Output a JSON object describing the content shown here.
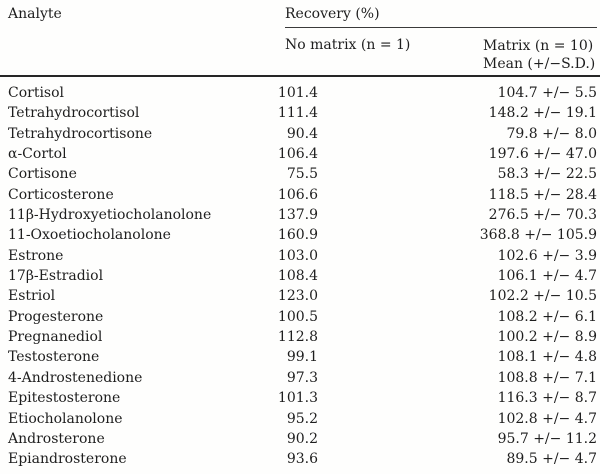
{
  "page": {
    "background": "#fefefd",
    "text_color": "#1e1e1e",
    "thick_rule_color": "#262626",
    "thin_rule_color": "#3a3a3a"
  },
  "table": {
    "analyte_header": "Analyte",
    "group_header": "Recovery (%)",
    "no_matrix_header": "No matrix (n = 1)",
    "matrix_header_line1": "Matrix (n = 10)",
    "matrix_header_line2": "Mean (+/−S.D.)",
    "rows": [
      {
        "analyte": "Cortisol",
        "no_matrix": "101.4",
        "matrix": "104.7 +/− 5.5"
      },
      {
        "analyte": "Tetrahydrocortisol",
        "no_matrix": "111.4",
        "matrix": "148.2 +/− 19.1"
      },
      {
        "analyte": "Tetrahydrocortisone",
        "no_matrix": "90.4",
        "matrix": "79.8 +/− 8.0"
      },
      {
        "analyte": "α-Cortol",
        "no_matrix": "106.4",
        "matrix": "197.6 +/− 47.0"
      },
      {
        "analyte": "Cortisone",
        "no_matrix": "75.5",
        "matrix": "58.3 +/− 22.5"
      },
      {
        "analyte": "Corticosterone",
        "no_matrix": "106.6",
        "matrix": "118.5 +/− 28.4"
      },
      {
        "analyte": "11β-Hydroxyetiocholanolone",
        "no_matrix": "137.9",
        "matrix": "276.5 +/− 70.3"
      },
      {
        "analyte": "11-Oxoetiocholanolone",
        "no_matrix": "160.9",
        "matrix": "368.8 +/− 105.9"
      },
      {
        "analyte": "Estrone",
        "no_matrix": "103.0",
        "matrix": "102.6 +/− 3.9"
      },
      {
        "analyte": "17β-Estradiol",
        "no_matrix": "108.4",
        "matrix": "106.1 +/− 4.7"
      },
      {
        "analyte": "Estriol",
        "no_matrix": "123.0",
        "matrix": "102.2 +/− 10.5"
      },
      {
        "analyte": "Progesterone",
        "no_matrix": "100.5",
        "matrix": "108.2 +/− 6.1"
      },
      {
        "analyte": "Pregnanediol",
        "no_matrix": "112.8",
        "matrix": "100.2 +/− 8.9"
      },
      {
        "analyte": "Testosterone",
        "no_matrix": "99.1",
        "matrix": "108.1 +/− 4.8"
      },
      {
        "analyte": "4-Androstenedione",
        "no_matrix": "97.3",
        "matrix": "108.8 +/− 7.1"
      },
      {
        "analyte": "Epitestosterone",
        "no_matrix": "101.3",
        "matrix": "116.3 +/− 8.7"
      },
      {
        "analyte": "Etiocholanolone",
        "no_matrix": "95.2",
        "matrix": "102.8 +/− 4.7"
      },
      {
        "analyte": "Androsterone",
        "no_matrix": "90.2",
        "matrix": "95.7 +/− 11.2"
      },
      {
        "analyte": "Epiandrosterone",
        "no_matrix": "93.6",
        "matrix": "89.5 +/− 4.7"
      }
    ]
  }
}
